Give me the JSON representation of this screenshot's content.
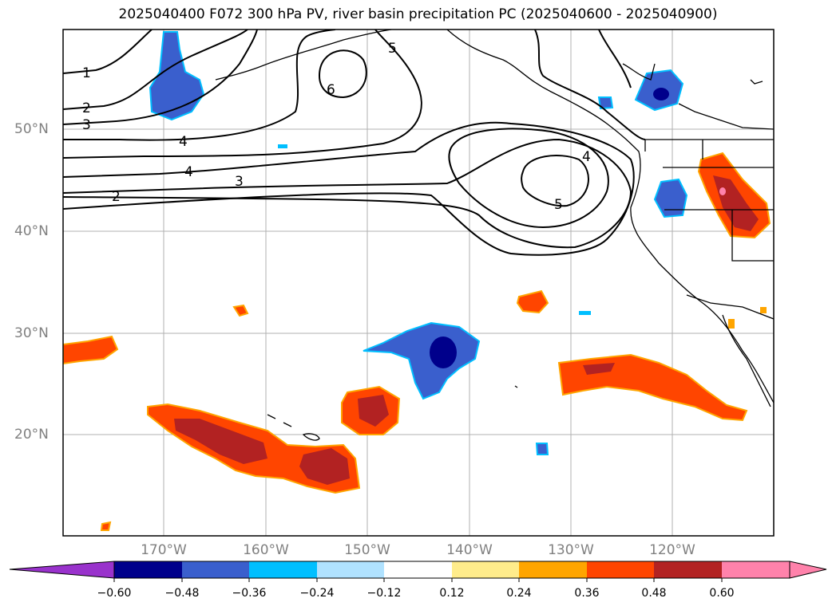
{
  "title": "2025040400 F072 300 hPa PV, river basin precipitation PC (2025040600 - 2025040900)",
  "lat_labels": [
    "50°N",
    "40°N",
    "30°N",
    "20°N"
  ],
  "lon_labels": [
    "170°W",
    "160°W",
    "150°W",
    "140°W",
    "130°W",
    "120°W"
  ],
  "contour_labels": [
    "1",
    "2",
    "3",
    "4",
    "4",
    "3",
    "2",
    "5",
    "6",
    "4",
    "5"
  ],
  "colorbar": {
    "ticks": [
      "−0.60",
      "−0.48",
      "−0.36",
      "−0.24",
      "−0.12",
      "0.12",
      "0.24",
      "0.36",
      "0.48",
      "0.60"
    ],
    "colors": [
      "#9932cc",
      "#00008b",
      "#3a5fcd",
      "#00bfff",
      "#b0e2ff",
      "#ffffff",
      "#ffec8b",
      "#ffa500",
      "#ff4500",
      "#b22222",
      "#ff82ab"
    ]
  }
}
